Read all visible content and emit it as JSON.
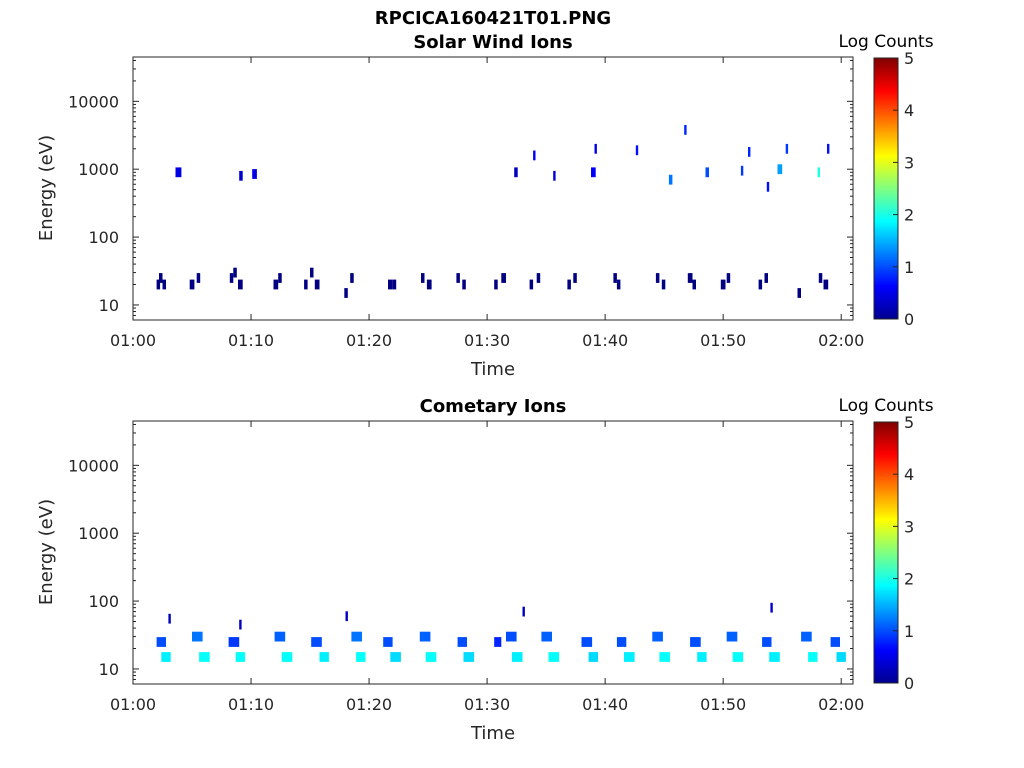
{
  "figure_title": "RPCICA160421T01.PNG",
  "chart_data": [
    {
      "type": "heatmap",
      "title": "Solar Wind Ions",
      "xlabel": "Time",
      "ylabel": "Energy (eV)",
      "yscale": "log",
      "ylim": [
        6,
        45000
      ],
      "xlim_minutes": [
        60,
        121
      ],
      "x_tick_labels": [
        "01:00",
        "01:10",
        "01:20",
        "01:30",
        "01:40",
        "01:50",
        "02:00"
      ],
      "y_tick_labels": [
        "10",
        "100",
        "1000",
        "10000"
      ],
      "colorbar": {
        "title": "Log Counts",
        "min": 0,
        "max": 5,
        "ticks": [
          "0",
          "1",
          "2",
          "3",
          "4",
          "5"
        ]
      },
      "grid": false,
      "cells": [
        [
          62.0,
          0.0,
          20,
          0.3
        ],
        [
          62.2,
          0.0,
          25,
          0.3
        ],
        [
          62.5,
          0.0,
          20,
          0.3
        ],
        [
          64.8,
          0.0,
          20,
          0.4
        ],
        [
          65.4,
          0.0,
          25,
          0.3
        ],
        [
          68.2,
          0.0,
          25,
          0.3
        ],
        [
          68.5,
          0.0,
          30,
          0.3
        ],
        [
          68.9,
          0.0,
          20,
          0.4
        ],
        [
          71.9,
          0.0,
          20,
          0.4
        ],
        [
          72.3,
          0.0,
          25,
          0.3
        ],
        [
          74.5,
          0.0,
          20,
          0.3
        ],
        [
          75.0,
          0.0,
          30,
          0.3
        ],
        [
          75.4,
          0.0,
          20,
          0.4
        ],
        [
          77.9,
          0.0,
          15,
          0.3
        ],
        [
          78.4,
          0.0,
          25,
          0.3
        ],
        [
          81.6,
          0.0,
          20,
          0.4
        ],
        [
          82.0,
          0.0,
          20,
          0.3
        ],
        [
          84.4,
          0.0,
          25,
          0.3
        ],
        [
          84.9,
          0.0,
          20,
          0.4
        ],
        [
          87.4,
          0.0,
          25,
          0.3
        ],
        [
          87.9,
          0.0,
          20,
          0.3
        ],
        [
          90.6,
          0.0,
          20,
          0.3
        ],
        [
          91.2,
          0.0,
          25,
          0.4
        ],
        [
          93.6,
          0.0,
          20,
          0.3
        ],
        [
          94.2,
          0.0,
          25,
          0.3
        ],
        [
          96.8,
          0.0,
          20,
          0.3
        ],
        [
          97.3,
          0.0,
          25,
          0.3
        ],
        [
          100.7,
          0.0,
          25,
          0.3
        ],
        [
          101.0,
          0.0,
          20,
          0.3
        ],
        [
          104.3,
          0.0,
          25,
          0.3
        ],
        [
          104.8,
          0.0,
          20,
          0.3
        ],
        [
          107.0,
          0.0,
          25,
          0.4
        ],
        [
          107.4,
          0.0,
          20,
          0.3
        ],
        [
          109.8,
          0.0,
          20,
          0.4
        ],
        [
          110.3,
          0.0,
          25,
          0.3
        ],
        [
          113.0,
          0.0,
          20,
          0.3
        ],
        [
          113.5,
          0.0,
          25,
          0.3
        ],
        [
          116.3,
          0.0,
          15,
          0.3
        ],
        [
          118.1,
          0.0,
          25,
          0.3
        ],
        [
          118.5,
          0.0,
          20,
          0.4
        ],
        [
          63.6,
          0.5,
          900,
          0.5
        ],
        [
          69.0,
          0.4,
          800,
          0.3
        ],
        [
          70.1,
          0.5,
          850,
          0.4
        ],
        [
          92.3,
          0.3,
          900,
          0.3
        ],
        [
          93.9,
          0.6,
          1600,
          0.2
        ],
        [
          95.6,
          0.4,
          800,
          0.2
        ],
        [
          98.8,
          0.6,
          900,
          0.4
        ],
        [
          99.1,
          0.5,
          2000,
          0.2
        ],
        [
          102.6,
          0.7,
          1900,
          0.2
        ],
        [
          105.4,
          1.2,
          700,
          0.3
        ],
        [
          106.7,
          0.8,
          3800,
          0.2
        ],
        [
          108.5,
          1.0,
          900,
          0.3
        ],
        [
          111.5,
          0.9,
          950,
          0.2
        ],
        [
          112.1,
          0.8,
          1800,
          0.2
        ],
        [
          113.7,
          0.7,
          550,
          0.2
        ],
        [
          114.6,
          1.4,
          1000,
          0.4
        ],
        [
          115.3,
          0.9,
          2000,
          0.2
        ],
        [
          118.0,
          2.0,
          900,
          0.2
        ],
        [
          118.8,
          0.7,
          2000,
          0.2
        ]
      ]
    },
    {
      "type": "heatmap",
      "title": "Cometary Ions",
      "xlabel": "Time",
      "ylabel": "Energy (eV)",
      "yscale": "log",
      "ylim": [
        6,
        45000
      ],
      "xlim_minutes": [
        60,
        121
      ],
      "x_tick_labels": [
        "01:00",
        "01:10",
        "01:20",
        "01:30",
        "01:40",
        "01:50",
        "02:00"
      ],
      "y_tick_labels": [
        "10",
        "100",
        "1000",
        "10000"
      ],
      "colorbar": {
        "title": "Log Counts",
        "min": 0,
        "max": 5,
        "ticks": [
          "0",
          "1",
          "2",
          "3",
          "4",
          "5"
        ]
      },
      "grid": false,
      "cells": [
        [
          62.0,
          1.0,
          25,
          0.8
        ],
        [
          62.4,
          1.8,
          15,
          0.8
        ],
        [
          63.0,
          0.3,
          55,
          0.2
        ],
        [
          65.0,
          1.2,
          30,
          0.9
        ],
        [
          65.6,
          1.9,
          15,
          0.9
        ],
        [
          68.1,
          0.9,
          25,
          0.9
        ],
        [
          68.7,
          1.9,
          15,
          0.8
        ],
        [
          69.0,
          0.3,
          45,
          0.2
        ],
        [
          72.0,
          1.1,
          30,
          0.9
        ],
        [
          72.6,
          1.9,
          15,
          0.9
        ],
        [
          75.1,
          1.0,
          25,
          0.9
        ],
        [
          75.8,
          1.8,
          15,
          0.8
        ],
        [
          78.0,
          0.3,
          60,
          0.2
        ],
        [
          78.5,
          1.2,
          30,
          0.9
        ],
        [
          78.9,
          1.9,
          15,
          0.8
        ],
        [
          81.2,
          1.0,
          25,
          0.8
        ],
        [
          81.8,
          1.7,
          15,
          0.9
        ],
        [
          84.3,
          1.1,
          30,
          0.9
        ],
        [
          84.8,
          1.9,
          15,
          0.9
        ],
        [
          87.5,
          1.0,
          25,
          0.8
        ],
        [
          88.0,
          1.7,
          15,
          0.9
        ],
        [
          90.6,
          0.8,
          25,
          0.6
        ],
        [
          91.6,
          1.0,
          30,
          0.9
        ],
        [
          92.1,
          1.8,
          15,
          0.9
        ],
        [
          93.0,
          0.3,
          70,
          0.2
        ],
        [
          94.6,
          1.1,
          30,
          0.9
        ],
        [
          95.2,
          1.9,
          15,
          0.9
        ],
        [
          98.0,
          1.0,
          25,
          0.9
        ],
        [
          98.6,
          1.7,
          15,
          0.8
        ],
        [
          101.0,
          1.0,
          25,
          0.8
        ],
        [
          101.6,
          1.8,
          15,
          0.9
        ],
        [
          104.0,
          1.1,
          30,
          0.9
        ],
        [
          104.6,
          1.9,
          15,
          0.9
        ],
        [
          107.2,
          1.0,
          25,
          0.9
        ],
        [
          107.8,
          1.8,
          15,
          0.8
        ],
        [
          110.3,
          1.1,
          30,
          0.9
        ],
        [
          110.8,
          1.9,
          15,
          0.9
        ],
        [
          113.3,
          1.0,
          25,
          0.8
        ],
        [
          113.9,
          1.8,
          15,
          0.9
        ],
        [
          114.0,
          0.4,
          80,
          0.2
        ],
        [
          116.6,
          1.1,
          30,
          0.9
        ],
        [
          117.2,
          1.9,
          15,
          0.8
        ],
        [
          119.1,
          1.0,
          25,
          0.8
        ],
        [
          119.6,
          1.7,
          15,
          0.8
        ]
      ]
    }
  ]
}
